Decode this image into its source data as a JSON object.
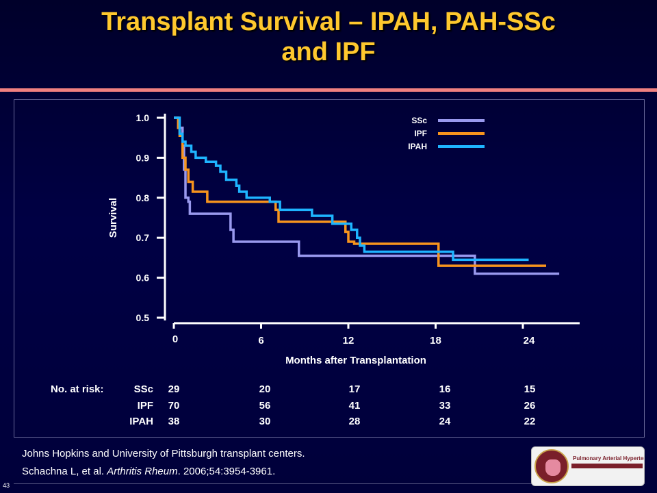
{
  "slide": {
    "title_line1": "Transplant Survival – IPAH, PAH-SSc",
    "title_line2": "and IPF",
    "reference_line1": "Johns Hopkins and University of Pittsburgh transplant centers.",
    "reference_authors": "Schachna L, et al. ",
    "reference_journal": "Arthritis Rheum",
    "reference_tail": ". 2006;54:3954-3961.",
    "slide_number": "43",
    "logo_text": "Pulmonary Arterial Hypertension"
  },
  "chart_data": {
    "type": "line",
    "step": true,
    "title": "",
    "xlabel": "Months after Transplantation",
    "ylabel": "Survival",
    "xlim": [
      0,
      27
    ],
    "ylim": [
      0.5,
      1.0
    ],
    "xticks": [
      0,
      6,
      12,
      18,
      24
    ],
    "yticks": [
      0.5,
      0.6,
      0.7,
      0.8,
      0.9,
      1.0
    ],
    "ytick_labels": [
      "0.5",
      "0.6",
      "0.7",
      "0.8",
      "0.9",
      "1.0"
    ],
    "legend_position": "top-right",
    "series": [
      {
        "name": "SSc",
        "color": "#9999EE",
        "points": [
          [
            0,
            1.0
          ],
          [
            0.3,
            0.975
          ],
          [
            0.6,
            0.93
          ],
          [
            0.7,
            0.87
          ],
          [
            0.8,
            0.8
          ],
          [
            1.0,
            0.79
          ],
          [
            1.1,
            0.76
          ],
          [
            3.9,
            0.76
          ],
          [
            3.9,
            0.72
          ],
          [
            4.1,
            0.69
          ],
          [
            8.6,
            0.69
          ],
          [
            8.6,
            0.655
          ],
          [
            20.7,
            0.655
          ],
          [
            20.7,
            0.61
          ],
          [
            26.5,
            0.61
          ]
        ]
      },
      {
        "name": "IPF",
        "color": "#F7941D",
        "points": [
          [
            0,
            1.0
          ],
          [
            0.3,
            0.975
          ],
          [
            0.4,
            0.955
          ],
          [
            0.6,
            0.9
          ],
          [
            0.8,
            0.87
          ],
          [
            1.0,
            0.84
          ],
          [
            1.3,
            0.815
          ],
          [
            2.3,
            0.79
          ],
          [
            7.0,
            0.79
          ],
          [
            7.0,
            0.77
          ],
          [
            7.2,
            0.74
          ],
          [
            11.8,
            0.74
          ],
          [
            11.8,
            0.715
          ],
          [
            12.0,
            0.69
          ],
          [
            12.4,
            0.685
          ],
          [
            18.1,
            0.685
          ],
          [
            18.2,
            0.63
          ],
          [
            25.6,
            0.63
          ]
        ]
      },
      {
        "name": "IPAH",
        "color": "#1EB4FF",
        "points": [
          [
            0,
            1.0
          ],
          [
            0.4,
            0.96
          ],
          [
            0.6,
            0.94
          ],
          [
            0.8,
            0.93
          ],
          [
            1.2,
            0.915
          ],
          [
            1.5,
            0.9
          ],
          [
            2.1,
            0.9
          ],
          [
            2.2,
            0.89
          ],
          [
            2.9,
            0.88
          ],
          [
            3.2,
            0.865
          ],
          [
            3.6,
            0.845
          ],
          [
            4.3,
            0.83
          ],
          [
            4.5,
            0.815
          ],
          [
            5.0,
            0.8
          ],
          [
            6.6,
            0.8
          ],
          [
            6.6,
            0.79
          ],
          [
            7.3,
            0.77
          ],
          [
            9.5,
            0.77
          ],
          [
            9.5,
            0.755
          ],
          [
            10.9,
            0.755
          ],
          [
            10.9,
            0.735
          ],
          [
            12.2,
            0.735
          ],
          [
            12.2,
            0.72
          ],
          [
            12.6,
            0.7
          ],
          [
            12.8,
            0.68
          ],
          [
            13.1,
            0.665
          ],
          [
            19.2,
            0.665
          ],
          [
            19.2,
            0.645
          ],
          [
            24.4,
            0.645
          ]
        ]
      }
    ],
    "risk_table": {
      "header": "No. at risk:",
      "columns": [
        0,
        6,
        12,
        18,
        24
      ],
      "rows": [
        {
          "label": "SSc",
          "values": [
            "29",
            "20",
            "17",
            "16",
            "15"
          ]
        },
        {
          "label": "IPF",
          "values": [
            "70",
            "56",
            "41",
            "33",
            "26"
          ]
        },
        {
          "label": "IPAH",
          "values": [
            "38",
            "30",
            "28",
            "24",
            "22"
          ]
        }
      ]
    }
  }
}
